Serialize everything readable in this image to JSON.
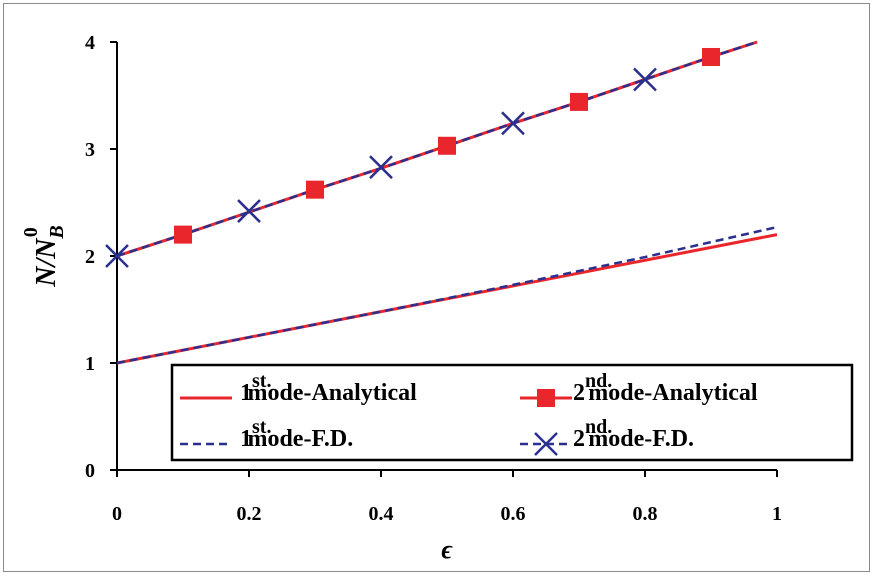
{
  "chart_data": {
    "type": "line",
    "xlabel": "ϵ",
    "ylabel": {
      "base": "N/N",
      "sub": "B",
      "sup": "0"
    },
    "xlim": [
      0,
      1
    ],
    "ylim": [
      0,
      4
    ],
    "xticks": [
      "0",
      "0.2",
      "0.4",
      "0.6",
      "0.8",
      "1"
    ],
    "yticks": [
      "0",
      "1",
      "2",
      "3",
      "4"
    ],
    "grid": false,
    "legend_position": "bottom-center",
    "series": [
      {
        "name": {
          "num": "1",
          "sup": "st.",
          "rest": "mode-Analytical"
        },
        "style": "solid",
        "color": "#e8262b",
        "marker": "none",
        "x": [
          0,
          0.2,
          0.4,
          0.6,
          0.8,
          1.0
        ],
        "y": [
          1.0,
          1.24,
          1.48,
          1.72,
          1.96,
          2.2
        ]
      },
      {
        "name": {
          "num": "1",
          "sup": "st.",
          "rest": "mode-F.D."
        },
        "style": "dashed",
        "color": "#2b2f8e",
        "marker": "none",
        "x": [
          0,
          0.2,
          0.4,
          0.6,
          0.8,
          1.0
        ],
        "y": [
          1.0,
          1.24,
          1.48,
          1.73,
          1.99,
          2.27
        ]
      },
      {
        "name": {
          "num": "2",
          "sup": "nd.",
          "rest": "mode-Analytical"
        },
        "style": "solid",
        "color": "#e8262b",
        "marker": "square",
        "x": [
          0,
          0.1,
          0.2,
          0.3,
          0.4,
          0.5,
          0.6,
          0.7,
          0.8,
          0.9,
          0.97
        ],
        "y": [
          2.0,
          2.2,
          2.41,
          2.62,
          2.82,
          3.03,
          3.24,
          3.44,
          3.65,
          3.86,
          4.0
        ],
        "marker_x": [
          0.1,
          0.3,
          0.5,
          0.7,
          0.9
        ],
        "marker_y": [
          2.2,
          2.62,
          3.03,
          3.44,
          3.86
        ]
      },
      {
        "name": {
          "num": "2",
          "sup": "nd.",
          "rest": "mode-F.D."
        },
        "style": "dashed",
        "color": "#2b2f8e",
        "marker": "x",
        "x": [
          0,
          0.1,
          0.2,
          0.3,
          0.4,
          0.5,
          0.6,
          0.7,
          0.8,
          0.9,
          0.97
        ],
        "y": [
          2.0,
          2.2,
          2.41,
          2.62,
          2.82,
          3.03,
          3.24,
          3.44,
          3.65,
          3.86,
          4.0
        ],
        "marker_x": [
          0,
          0.2,
          0.4,
          0.6,
          0.8
        ],
        "marker_y": [
          2.0,
          2.42,
          2.83,
          3.24,
          3.65
        ]
      }
    ]
  }
}
